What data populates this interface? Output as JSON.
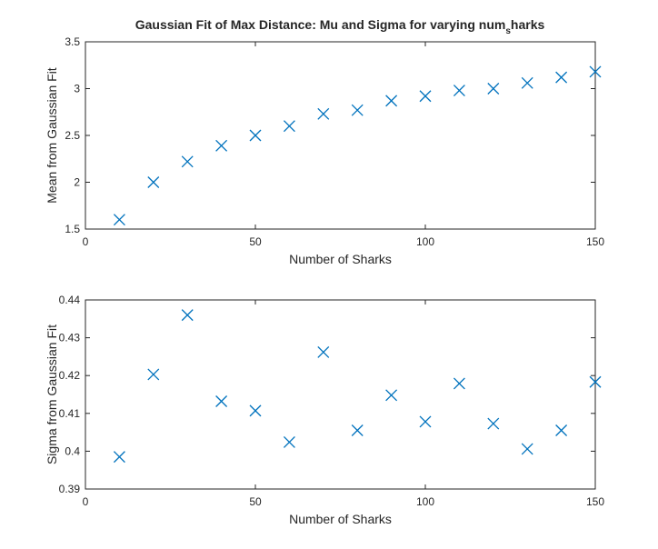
{
  "figure": {
    "title": "Gaussian Fit of Max Distance: Mu and Sigma for varying num",
    "title_subscript": "s",
    "title_suffix": "harks"
  },
  "chart_data": [
    {
      "type": "scatter",
      "marker": "x",
      "color": "#0072BD",
      "xlabel": "Number of Sharks",
      "ylabel": "Mean from Gaussian Fit",
      "xlim": [
        0,
        150
      ],
      "ylim": [
        1.5,
        3.5
      ],
      "xticks": [
        0,
        50,
        100,
        150
      ],
      "yticks": [
        1.5,
        2,
        2.5,
        3,
        3.5
      ],
      "xtick_labels": [
        "0",
        "50",
        "100",
        "150"
      ],
      "ytick_labels": [
        "1.5",
        "2",
        "2.5",
        "3",
        "3.5"
      ],
      "x": [
        10,
        20,
        30,
        40,
        50,
        60,
        70,
        80,
        90,
        100,
        110,
        120,
        130,
        140,
        150
      ],
      "y": [
        1.6,
        2.0,
        2.22,
        2.39,
        2.5,
        2.6,
        2.73,
        2.77,
        2.87,
        2.92,
        2.98,
        3.0,
        3.06,
        3.12,
        3.18
      ],
      "grid": false
    },
    {
      "type": "scatter",
      "marker": "x",
      "color": "#0072BD",
      "xlabel": "Number of Sharks",
      "ylabel": "Sigma from Gaussian Fit",
      "xlim": [
        0,
        150
      ],
      "ylim": [
        0.39,
        0.44
      ],
      "xticks": [
        0,
        50,
        100,
        150
      ],
      "yticks": [
        0.39,
        0.4,
        0.41,
        0.42,
        0.43,
        0.44
      ],
      "xtick_labels": [
        "0",
        "50",
        "100",
        "150"
      ],
      "ytick_labels": [
        "0.39",
        "0.4",
        "0.41",
        "0.42",
        "0.43",
        "0.44"
      ],
      "x": [
        10,
        20,
        30,
        40,
        50,
        60,
        70,
        80,
        90,
        100,
        110,
        120,
        130,
        140,
        150
      ],
      "y": [
        0.3985,
        0.4203,
        0.436,
        0.4132,
        0.4107,
        0.4024,
        0.4262,
        0.4055,
        0.4148,
        0.4078,
        0.4179,
        0.4073,
        0.4006,
        0.4055,
        0.4183
      ],
      "grid": false
    }
  ]
}
